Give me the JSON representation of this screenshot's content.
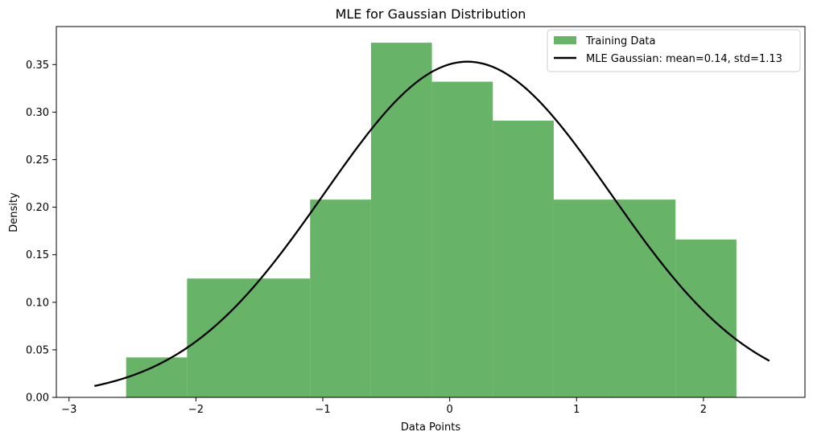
{
  "chart_data": {
    "type": "bar",
    "title": "MLE for Gaussian Distribution",
    "xlabel": "Data Points",
    "ylabel": "Density",
    "xlim": [
      -3.1,
      2.8
    ],
    "ylim": [
      0,
      0.39
    ],
    "xticks": [
      {
        "value": -3,
        "label": "−3"
      },
      {
        "value": -2,
        "label": "−2"
      },
      {
        "value": -1,
        "label": "−1"
      },
      {
        "value": 0,
        "label": "0"
      },
      {
        "value": 1,
        "label": "1"
      },
      {
        "value": 2,
        "label": "2"
      }
    ],
    "yticks": [
      {
        "value": 0,
        "label": "0.00"
      },
      {
        "value": 0.05,
        "label": "0.05"
      },
      {
        "value": 0.1,
        "label": "0.10"
      },
      {
        "value": 0.15,
        "label": "0.15"
      },
      {
        "value": 0.2,
        "label": "0.20"
      },
      {
        "value": 0.25,
        "label": "0.25"
      },
      {
        "value": 0.3,
        "label": "0.30"
      },
      {
        "value": 0.35,
        "label": "0.35"
      }
    ],
    "grid": false,
    "legend_position": "top-right",
    "histogram": {
      "name": "Training Data",
      "color": "#4ca64c",
      "opacity": 0.85,
      "bin_edges": [
        -2.55,
        -2.07,
        -1.59,
        -1.1,
        -0.62,
        -0.14,
        0.34,
        0.82,
        1.3,
        1.78,
        2.26
      ],
      "densities": [
        0.042,
        0.125,
        0.125,
        0.208,
        0.373,
        0.332,
        0.291,
        0.208,
        0.208,
        0.166
      ]
    },
    "curve": {
      "name": "MLE Gaussian: mean=0.14, std=1.13",
      "color": "#000000",
      "type": "line",
      "mean": 0.14,
      "std": 1.13,
      "x_range": [
        -2.8,
        2.52
      ]
    }
  }
}
